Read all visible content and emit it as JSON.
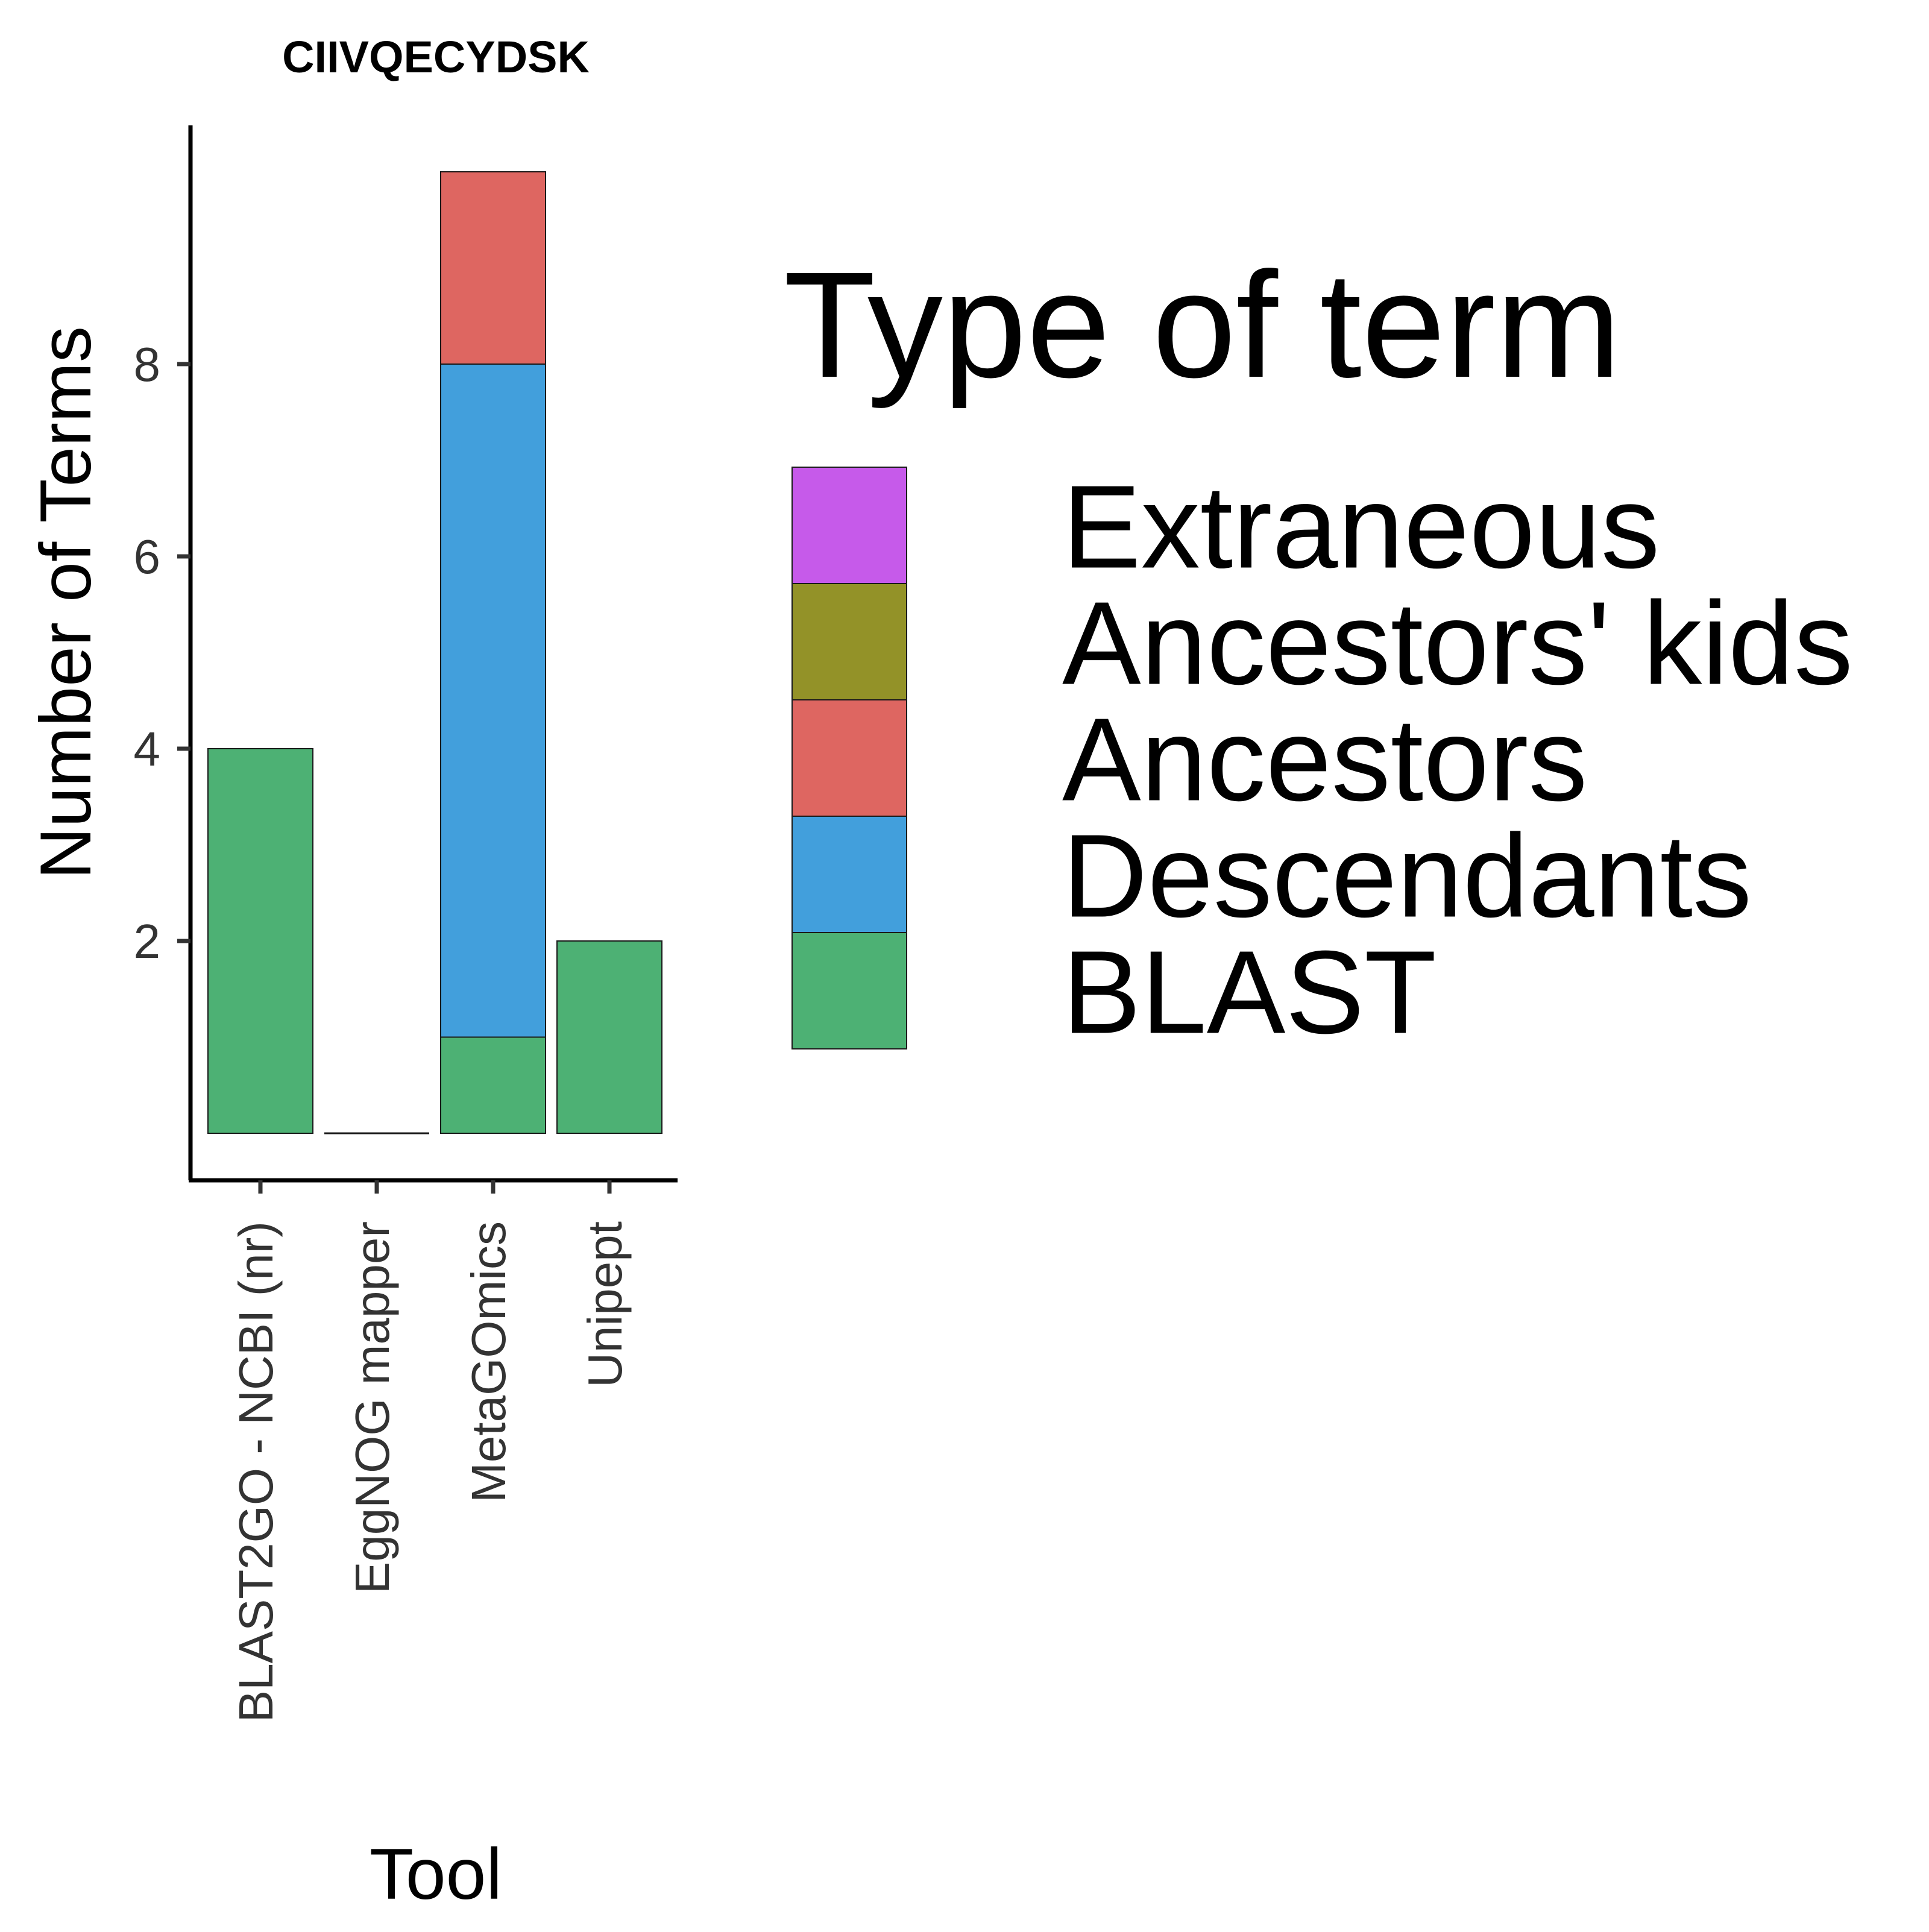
{
  "chart_data": {
    "type": "bar",
    "stacked": true,
    "title": "CIIVQECYDSK",
    "xlabel": "Tool",
    "ylabel": "Number of Terms",
    "categories": [
      "BLAST2GO - NCBI (nr)",
      "EggNOG mapper",
      "MetaGOmics",
      "Unipept"
    ],
    "ylim": [
      0,
      10
    ],
    "yticks": [
      2,
      4,
      6,
      8
    ],
    "series": [
      {
        "name": "BLAST",
        "color": "#4db174",
        "values": [
          4,
          0,
          1,
          2
        ]
      },
      {
        "name": "Descendants",
        "color": "#429fdc",
        "values": [
          0,
          0,
          7,
          0
        ]
      },
      {
        "name": "Ancestors",
        "color": "#de6661",
        "values": [
          0,
          0,
          2,
          0
        ]
      },
      {
        "name": "Ancestors' kids",
        "color": "#939228",
        "values": [
          0,
          0,
          0,
          0
        ]
      },
      {
        "name": "Extraneous",
        "color": "#c65aea",
        "values": [
          0,
          0,
          0,
          0
        ]
      }
    ],
    "legend": {
      "title": "Type of term",
      "placement": "right",
      "order": [
        "Extraneous",
        "Ancestors' kids",
        "Ancestors",
        "Descendants",
        "BLAST"
      ]
    },
    "grid": false
  }
}
